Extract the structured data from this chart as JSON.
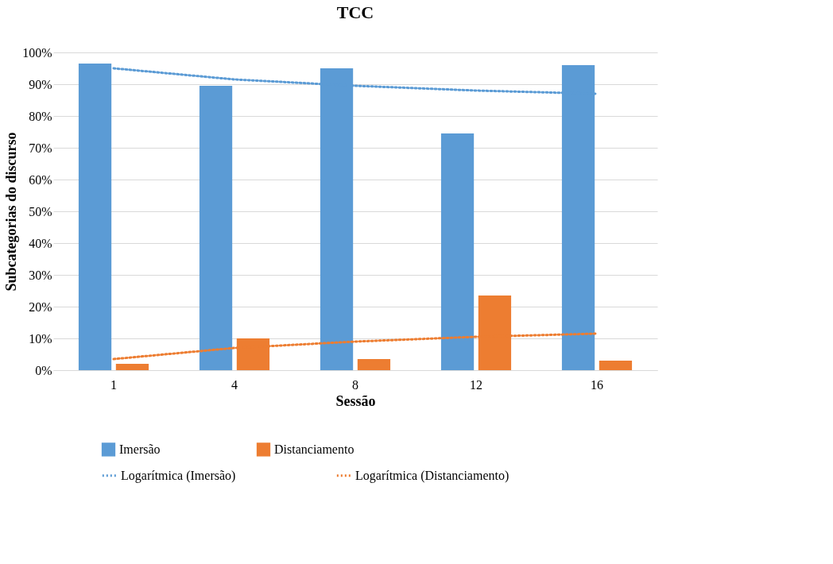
{
  "chart_data": {
    "type": "bar",
    "title": "TCC",
    "xlabel": "Sessão",
    "ylabel": "Subcategorias do discurso",
    "categories": [
      "1",
      "4",
      "8",
      "12",
      "16"
    ],
    "series": [
      {
        "name": "Imersão",
        "color": "#5b9bd5",
        "values": [
          96.5,
          89.5,
          95,
          74.5,
          96
        ]
      },
      {
        "name": "Distanciamento",
        "color": "#ed7d31",
        "values": [
          2,
          10,
          3.5,
          23.5,
          3
        ]
      },
      {
        "name": "Logarítmica (Imersão)",
        "type": "line",
        "line_style": "dotted",
        "color": "#5b9bd5",
        "values": [
          95,
          91.5,
          89.5,
          88,
          87
        ]
      },
      {
        "name": "Logarítmica (Distanciamento)",
        "type": "line",
        "line_style": "dotted",
        "color": "#ed7d31",
        "values": [
          3.5,
          7,
          9,
          10.5,
          11.5
        ]
      }
    ],
    "ylim": [
      0,
      100
    ],
    "yticks": [
      {
        "value": 0,
        "label": "0%"
      },
      {
        "value": 10,
        "label": "10%"
      },
      {
        "value": 20,
        "label": "20%"
      },
      {
        "value": 30,
        "label": "30%"
      },
      {
        "value": 40,
        "label": "40%"
      },
      {
        "value": 50,
        "label": "50%"
      },
      {
        "value": 60,
        "label": "60%"
      },
      {
        "value": 70,
        "label": "70%"
      },
      {
        "value": 80,
        "label": "80%"
      },
      {
        "value": 90,
        "label": "90%"
      },
      {
        "value": 100,
        "label": "100%"
      }
    ],
    "grid": "y",
    "legend": "bottom"
  }
}
